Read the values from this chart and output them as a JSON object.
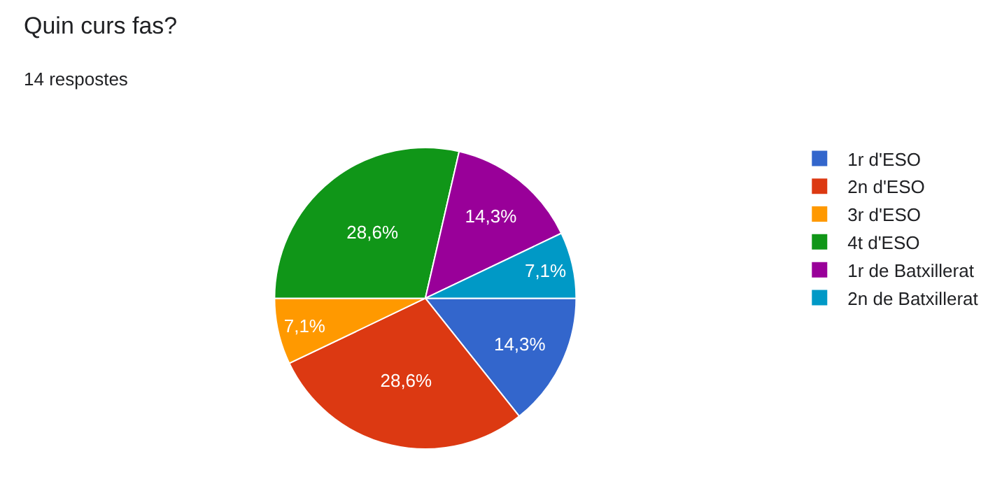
{
  "chart_data": {
    "type": "pie",
    "title": "Quin curs fas?",
    "subtitle": "14 respostes",
    "categories": [
      "1r d'ESO",
      "2n d'ESO",
      "3r d'ESO",
      "4t d'ESO",
      "1r de Batxillerat",
      "2n de Batxillerat"
    ],
    "values": [
      14.3,
      28.6,
      7.1,
      28.6,
      14.3,
      7.1
    ],
    "colors": [
      "#3366cc",
      "#dc3912",
      "#ff9900",
      "#109618",
      "#990099",
      "#0099c6"
    ],
    "value_labels": [
      "14,3%",
      "28,6%",
      "7,1%",
      "28,6%",
      "14,3%",
      "7,1%"
    ],
    "legend": "right"
  }
}
